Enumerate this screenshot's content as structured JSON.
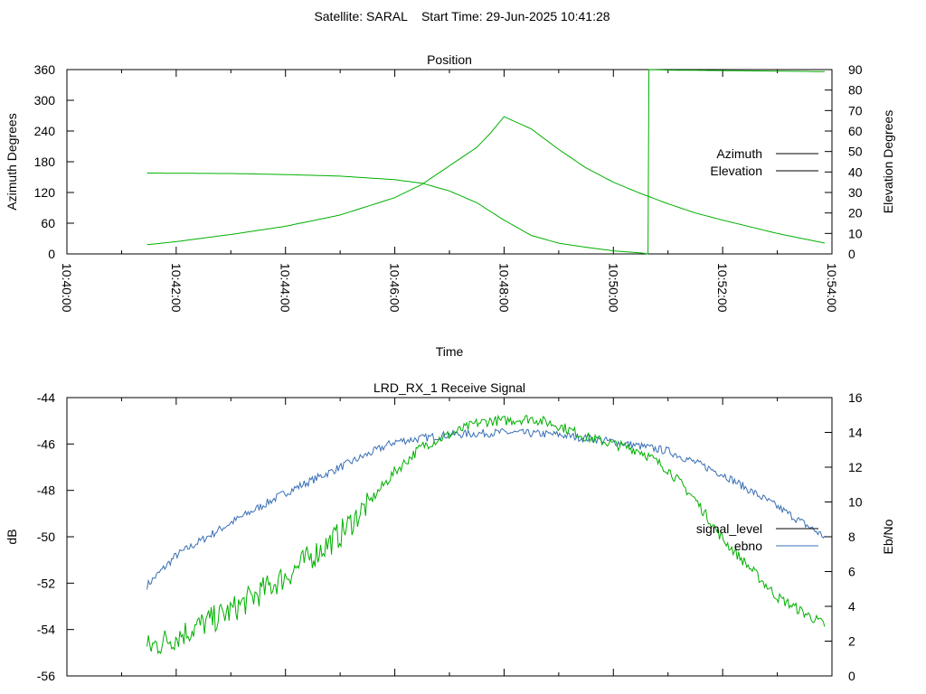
{
  "page_title": "Satellite: SARAL    Start Time: 29-Jun-2025 10:41:28",
  "colors": {
    "azimuth": "#b22222",
    "elevation": "#3a6fb5",
    "signal_level": "#000000",
    "ebno": "#3a6fb5",
    "green_trace": "#00b000",
    "frame": "#000000"
  },
  "chart_data": [
    {
      "type": "line",
      "title": "Position",
      "xlabel": "Time",
      "ylabel": "Azimuth Degrees",
      "y2label": "Elevation Degrees",
      "x_range": [
        "10:40:00",
        "10:54:00"
      ],
      "x_ticks": [
        "10:40:00",
        "10:42:00",
        "10:44:00",
        "10:46:00",
        "10:48:00",
        "10:50:00",
        "10:52:00",
        "10:54:00"
      ],
      "ylim": [
        0,
        360
      ],
      "y_ticks": [
        "0",
        "60",
        "120",
        "180",
        "240",
        "300",
        "360"
      ],
      "y2lim": [
        0,
        90
      ],
      "y2_ticks": [
        "0",
        "10",
        "20",
        "30",
        "40",
        "50",
        "60",
        "70",
        "80",
        "90"
      ],
      "legend_position": "right",
      "series": [
        {
          "name": "Azimuth",
          "axis": "left",
          "x": [
            "10:41:28",
            "10:42:00",
            "10:43:00",
            "10:44:00",
            "10:45:00",
            "10:46:00",
            "10:46:30",
            "10:47:00",
            "10:47:30",
            "10:48:00",
            "10:48:30",
            "10:49:00",
            "10:49:30",
            "10:50:00",
            "10:50:30",
            "10:50:38",
            "10:50:39",
            "10:51:00",
            "10:52:00",
            "10:53:00",
            "10:53:52"
          ],
          "values": [
            158,
            157.5,
            157,
            155,
            152,
            145,
            138,
            123,
            100,
            66,
            36,
            21,
            13,
            6,
            2,
            0,
            360,
            359,
            358,
            357,
            356
          ]
        },
        {
          "name": "Elevation",
          "axis": "right",
          "x": [
            "10:41:28",
            "10:42:00",
            "10:43:00",
            "10:44:00",
            "10:45:00",
            "10:46:00",
            "10:46:30",
            "10:47:00",
            "10:47:30",
            "10:47:45",
            "10:48:00",
            "10:48:30",
            "10:49:00",
            "10:49:30",
            "10:50:00",
            "10:50:30",
            "10:51:00",
            "10:51:30",
            "10:52:00",
            "10:53:00",
            "10:53:52"
          ],
          "values": [
            4.5,
            6,
            9.5,
            13.5,
            19,
            27.5,
            34,
            43,
            52,
            59,
            67,
            61,
            51,
            42,
            35,
            29.5,
            24.5,
            20,
            16.5,
            10,
            5.3
          ]
        }
      ]
    },
    {
      "type": "line",
      "title": "LRD_RX_1 Receive Signal",
      "xlabel": "",
      "ylabel": "dB",
      "y2label": "Eb/No",
      "x_range": [
        "10:40:00",
        "10:54:00"
      ],
      "ylim": [
        -56,
        -44
      ],
      "y_ticks": [
        "-56",
        "-54",
        "-52",
        "-50",
        "-48",
        "-46",
        "-44"
      ],
      "y2lim": [
        0,
        16
      ],
      "y2_ticks": [
        "0",
        "2",
        "4",
        "6",
        "8",
        "10",
        "12",
        "14",
        "16"
      ],
      "legend_position": "right",
      "series": [
        {
          "name": "signal_level",
          "axis": "left",
          "x": [],
          "values": []
        },
        {
          "name": "ebno",
          "axis": "left",
          "x": [
            "10:41:28",
            "10:42:00",
            "10:43:00",
            "10:44:00",
            "10:45:00",
            "10:46:00",
            "10:47:00",
            "10:48:00",
            "10:49:00",
            "10:50:00",
            "10:51:00",
            "10:52:00",
            "10:53:00",
            "10:53:52"
          ],
          "values": [
            -52.1,
            -50.8,
            -49.4,
            -48.1,
            -47.0,
            -45.9,
            -45.6,
            -45.5,
            -45.6,
            -45.9,
            -46.3,
            -47.3,
            -48.7,
            -50.0
          ]
        },
        {
          "axis": "left",
          "x": [
            "10:41:28",
            "10:42:00",
            "10:43:00",
            "10:44:00",
            "10:45:00",
            "10:45:30",
            "10:46:00",
            "10:46:30",
            "10:47:00",
            "10:47:30",
            "10:47:45",
            "10:48:00",
            "10:48:30",
            "10:49:00",
            "10:49:30",
            "10:50:00",
            "10:50:30",
            "10:51:00",
            "10:51:30",
            "10:52:00",
            "10:53:00",
            "10:53:52"
          ],
          "values": [
            -54.8,
            -54.3,
            -53.2,
            -51.7,
            -49.9,
            -48.6,
            -47.2,
            -46.1,
            -45.6,
            -45.1,
            -45.0,
            -45.0,
            -44.9,
            -45.2,
            -45.7,
            -46.0,
            -46.3,
            -47.1,
            -48.4,
            -50.1,
            -52.6,
            -53.8
          ]
        }
      ]
    }
  ]
}
